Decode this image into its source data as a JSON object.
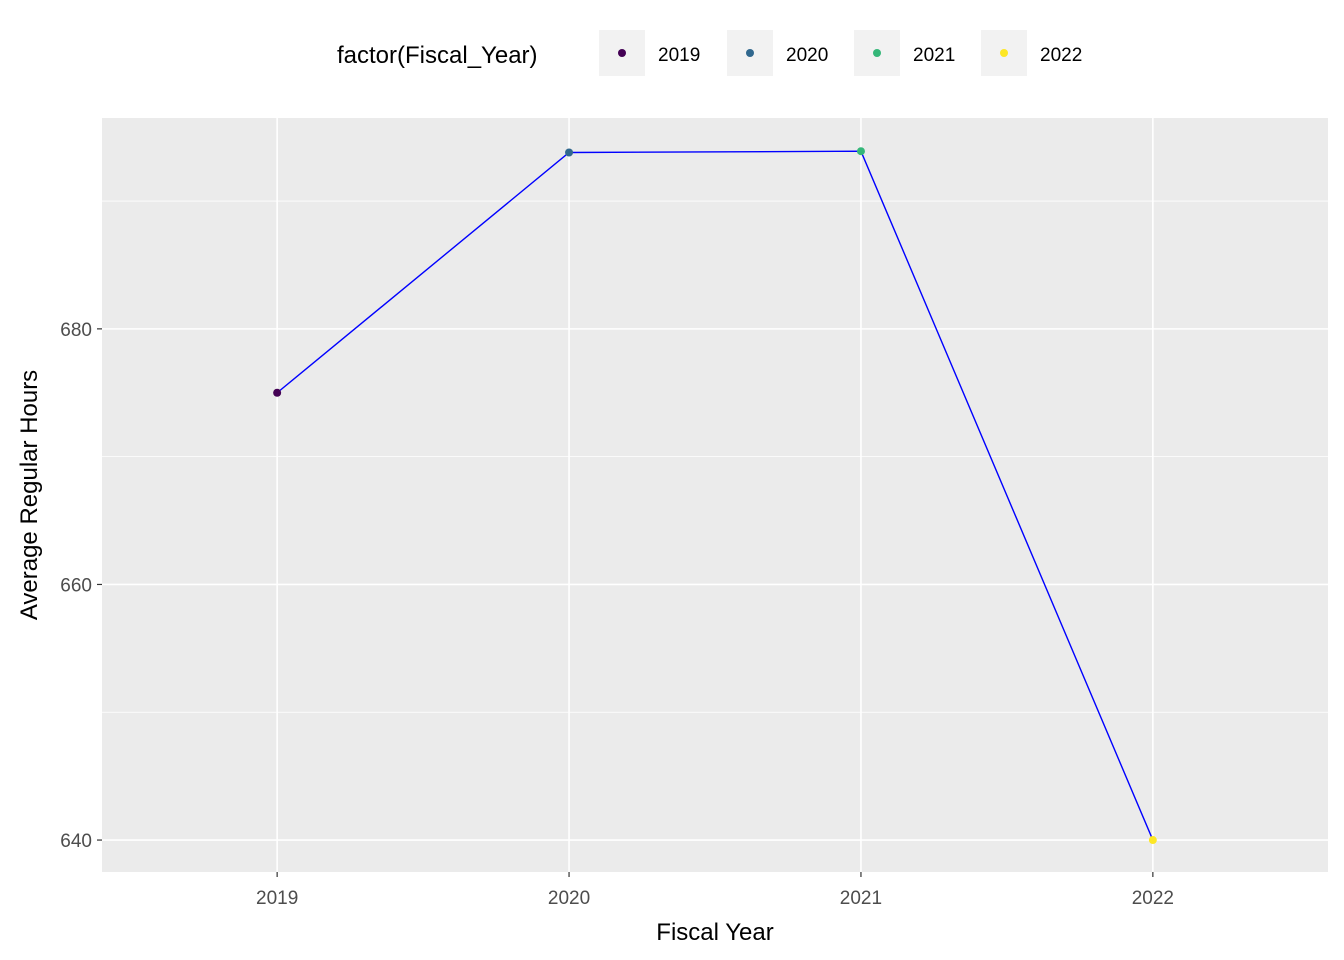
{
  "chart_data": {
    "type": "line",
    "title": "",
    "xlabel": "Fiscal Year",
    "ylabel": "Average Regular Hours",
    "x": [
      2019,
      2020,
      2021,
      2022
    ],
    "x_tick_labels": [
      "2019",
      "2020",
      "2021",
      "2022"
    ],
    "y_ticks": [
      640,
      660,
      680
    ],
    "y_tick_labels": [
      "640",
      "660",
      "680"
    ],
    "ylim": [
      637.5,
      696.5
    ],
    "xlim": [
      2018.4,
      2022.6
    ],
    "grid": true,
    "line_color": "#0000FF",
    "legend": {
      "title": "factor(Fiscal_Year)",
      "placement": "top",
      "entries": [
        {
          "label": "2019",
          "color": "#440154"
        },
        {
          "label": "2020",
          "color": "#31688E"
        },
        {
          "label": "2021",
          "color": "#35B779"
        },
        {
          "label": "2022",
          "color": "#FDE725"
        }
      ]
    },
    "series": [
      {
        "values": [
          675.0,
          693.8,
          693.9,
          640.0
        ],
        "point_colors": [
          "#440154",
          "#31688E",
          "#35B779",
          "#FDE725"
        ]
      }
    ]
  }
}
